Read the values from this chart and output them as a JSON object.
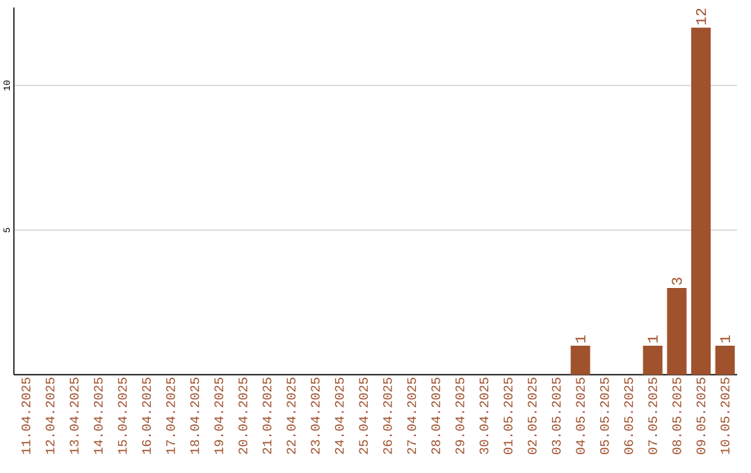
{
  "chart_data": {
    "type": "bar",
    "categories": [
      "11.04.2025",
      "12.04.2025",
      "13.04.2025",
      "14.04.2025",
      "15.04.2025",
      "16.04.2025",
      "17.04.2025",
      "18.04.2025",
      "19.04.2025",
      "20.04.2025",
      "21.04.2025",
      "22.04.2025",
      "23.04.2025",
      "24.04.2025",
      "25.04.2025",
      "26.04.2025",
      "27.04.2025",
      "28.04.2025",
      "29.04.2025",
      "30.04.2025",
      "01.05.2025",
      "02.05.2025",
      "03.05.2025",
      "04.05.2025",
      "05.05.2025",
      "06.05.2025",
      "07.05.2025",
      "08.05.2025",
      "09.05.2025",
      "10.05.2025"
    ],
    "series": [
      {
        "color": "#a0522d",
        "values": [
          0,
          0,
          0,
          0,
          0,
          0,
          0,
          0,
          0,
          0,
          0,
          0,
          0,
          0,
          0,
          0,
          0,
          0,
          0,
          0,
          0,
          0,
          0,
          1,
          0,
          0,
          1,
          3,
          12,
          1
        ],
        "value_labels": [
          null,
          null,
          null,
          null,
          null,
          null,
          null,
          null,
          null,
          null,
          null,
          null,
          null,
          null,
          null,
          null,
          null,
          null,
          null,
          null,
          null,
          null,
          null,
          "1",
          null,
          null,
          "1",
          "3",
          "12",
          "1"
        ]
      }
    ],
    "ylim": [
      0,
      12.7
    ],
    "yticks": [
      5,
      10
    ],
    "grid": "y"
  }
}
